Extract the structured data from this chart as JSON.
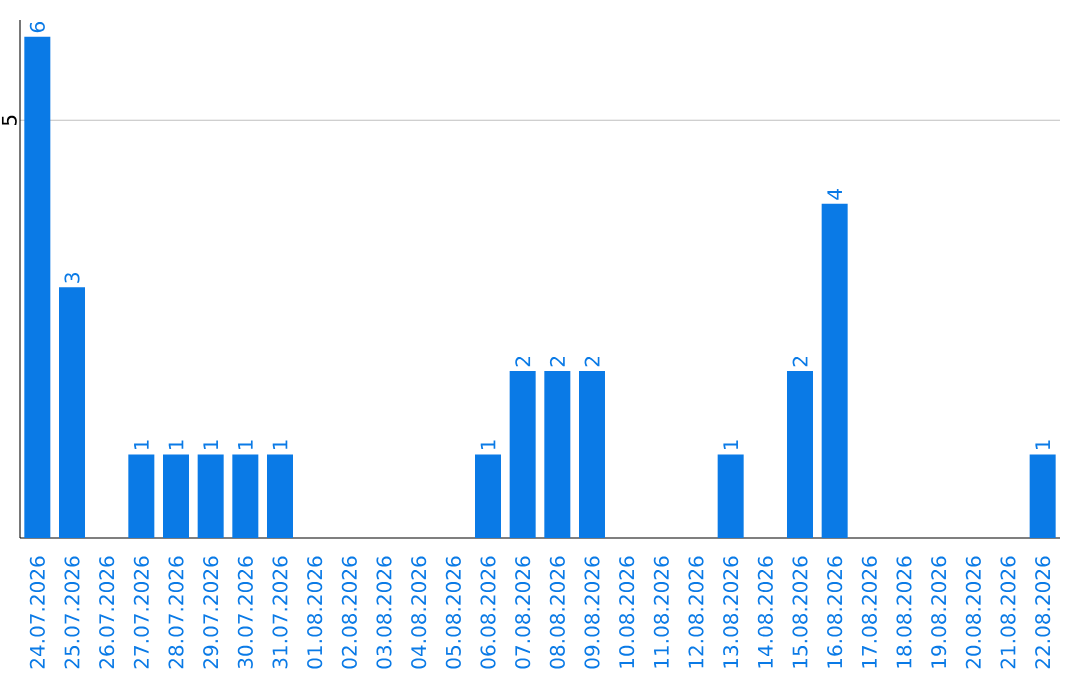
{
  "chart_data": {
    "type": "bar",
    "categories": [
      "24.07.2026",
      "25.07.2026",
      "26.07.2026",
      "27.07.2026",
      "28.07.2026",
      "29.07.2026",
      "30.07.2026",
      "31.07.2026",
      "01.08.2026",
      "02.08.2026",
      "03.08.2026",
      "04.08.2026",
      "05.08.2026",
      "06.08.2026",
      "07.08.2026",
      "08.08.2026",
      "09.08.2026",
      "10.08.2026",
      "11.08.2026",
      "12.08.2026",
      "13.08.2026",
      "14.08.2026",
      "15.08.2026",
      "16.08.2026",
      "17.08.2026",
      "18.08.2026",
      "19.08.2026",
      "20.08.2026",
      "21.08.2026",
      "22.08.2026"
    ],
    "values": [
      6,
      3,
      0,
      1,
      1,
      1,
      1,
      1,
      0,
      0,
      0,
      0,
      0,
      1,
      2,
      2,
      2,
      0,
      0,
      0,
      1,
      0,
      2,
      4,
      0,
      0,
      0,
      0,
      0,
      1
    ],
    "value_labels": [
      "6",
      "3",
      null,
      "1",
      "1",
      "1",
      "1",
      "1",
      null,
      null,
      null,
      null,
      null,
      "1",
      "2",
      "2",
      "2",
      null,
      null,
      null,
      "1",
      null,
      "2",
      "4",
      null,
      null,
      null,
      null,
      null,
      "1"
    ],
    "color": "#0a7ae6",
    "ylim": [
      0,
      6.2
    ],
    "yticks": [
      5
    ],
    "grid": "y"
  }
}
